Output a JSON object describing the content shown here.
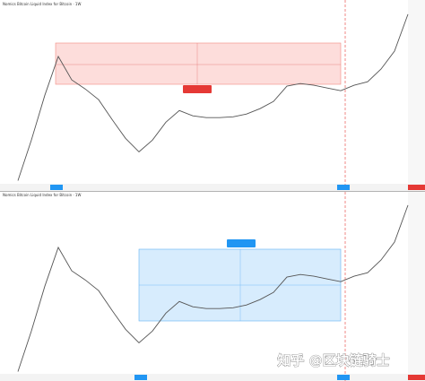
{
  "chart_data": [
    {
      "type": "line",
      "title": "Nomics Bitcoin Liquid Index for Bitcoin · 1W",
      "color": "#555555",
      "log_scale": true,
      "ylim": [
        1800,
        42000
      ],
      "values": [
        1905,
        3950,
        8880,
        17830,
        11700,
        9950,
        8190,
        5730,
        4080,
        3200,
        3950,
        5460,
        6740,
        6120,
        5930,
        5930,
        6020,
        6320,
        6970,
        7930,
        10450,
        10960,
        10620,
        10110,
        9630,
        10620,
        11320,
        14220,
        19650,
        38200
      ]
    },
    {
      "type": "line",
      "title": "Nomics Bitcoin Liquid Index for Bitcoin · 1W",
      "color": "#555555",
      "log_scale": true,
      "ylim": [
        1800,
        42000
      ],
      "values": [
        1905,
        3950,
        8880,
        17830,
        11700,
        9950,
        8190,
        5730,
        4080,
        3200,
        3950,
        5460,
        6740,
        6120,
        5930,
        5930,
        6020,
        6320,
        6970,
        7930,
        10450,
        10960,
        10620,
        10110,
        9630,
        10620,
        11320,
        14220,
        19650,
        38200
      ]
    }
  ],
  "watermark": "知乎 @区块链骑士"
}
